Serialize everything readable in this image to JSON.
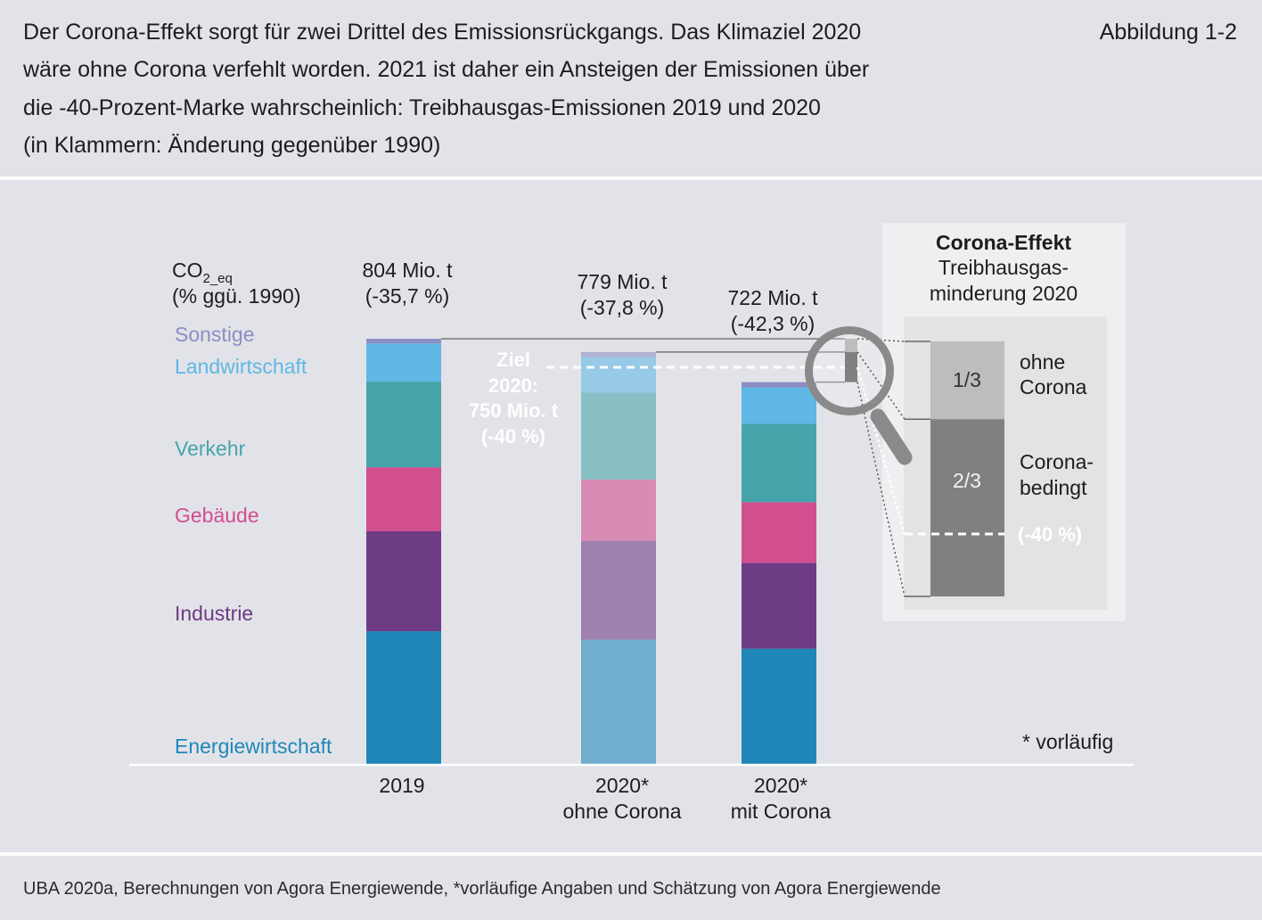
{
  "header": {
    "figure_label": "Abbildung 1-2"
  },
  "chart_data": {
    "type": "bar",
    "stacked": true,
    "title_lines": [
      "Der Corona-Effekt sorgt für zwei Drittel des Emissionsrückgangs. Das Klimaziel 2020",
      "wäre ohne Corona verfehlt worden. 2021 ist daher ein Ansteigen der Emissionen über",
      "die -40-Prozent-Marke wahrscheinlich: Treibhausgas-Emissionen 2019 und 2020",
      "(in Klammern: Änderung gegenüber 1990)"
    ],
    "ylabel": {
      "base": "CO",
      "subscript": "2_eq",
      "unit": "(% ggü. 1990)"
    },
    "ylim": [
      0,
      804
    ],
    "grid": false,
    "legend": "left",
    "categories": [
      {
        "year": "2019"
      },
      {
        "year": "2020*",
        "scenario": "ohne Corona"
      },
      {
        "year": "2020*",
        "scenario": "mit Corona"
      }
    ],
    "series": [
      {
        "name": "Energiewirtschaft",
        "color": "#1f87b8",
        "values": [
          251,
          235,
          218
        ]
      },
      {
        "name": "Industrie",
        "color": "#6e3b85",
        "values": [
          189,
          187,
          162
        ]
      },
      {
        "name": "Gebäude",
        "color": "#d14e8f",
        "values": [
          121,
          116,
          115
        ]
      },
      {
        "name": "Verkehr",
        "color": "#45a5ab",
        "values": [
          162,
          164,
          148
        ]
      },
      {
        "name": "Landwirtschaft",
        "color": "#5fb8e5",
        "values": [
          72,
          67,
          69
        ]
      },
      {
        "name": "Sonstige",
        "color": "#8b8ec4",
        "values": [
          9,
          10,
          10
        ]
      }
    ],
    "total_labels": [
      "804 Mio. t",
      "779 Mio. t",
      "722 Mio. t"
    ],
    "change_labels": [
      "(-35,7 %)",
      "(-37,8 %)",
      "(-42,3 %)"
    ],
    "target": {
      "value": 750,
      "label_lines": [
        "Ziel",
        "2020:",
        "750 Mio. t",
        "(-40 %)"
      ]
    },
    "footnote": "* vorläufig"
  },
  "inset": {
    "title": "Corona-Effekt",
    "subtitle_lines": [
      "Treibhausgas-",
      "minderung 2020"
    ],
    "segments": [
      {
        "share_label": "1/3",
        "desc_lines": [
          "ohne",
          "Corona"
        ],
        "color": "#bdbdbd"
      },
      {
        "share_label": "2/3",
        "desc_lines": [
          "Corona-",
          "bedingt"
        ],
        "color": "#808080"
      }
    ],
    "target_label": "(-40 %)"
  },
  "footer": {
    "source": "UBA 2020a, Berechnungen von Agora Energiewende, *vorläufige Angaben und Schätzung von Agora Energiewende"
  }
}
